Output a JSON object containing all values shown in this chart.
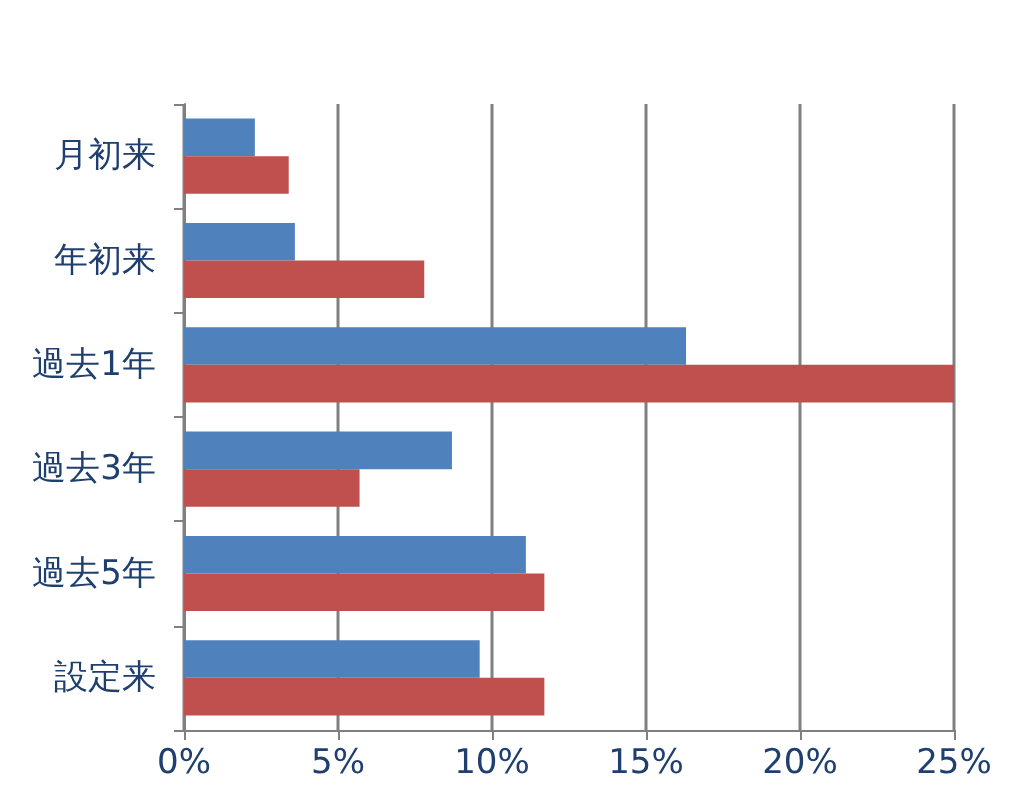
{
  "chart_data": {
    "type": "bar",
    "orientation": "horizontal",
    "categories": [
      "月初来",
      "年初来",
      "過去1年",
      "過去3年",
      "過去5年",
      "設定来"
    ],
    "series": [
      {
        "color": "#4f81bd",
        "values": [
          2.3,
          3.6,
          16.3,
          8.7,
          11.1,
          9.6
        ]
      },
      {
        "color": "#c0504d",
        "values": [
          3.4,
          7.8,
          25,
          5.7,
          11.7,
          11.7
        ]
      }
    ],
    "xlim": [
      0,
      25
    ],
    "xticks": [
      {
        "value": 0,
        "label": "0%"
      },
      {
        "value": 5,
        "label": "5%"
      },
      {
        "value": 10,
        "label": "10%"
      },
      {
        "value": 15,
        "label": "15%"
      },
      {
        "value": 20,
        "label": "20%"
      },
      {
        "value": 25,
        "label": "25%"
      }
    ],
    "grid": "x"
  }
}
